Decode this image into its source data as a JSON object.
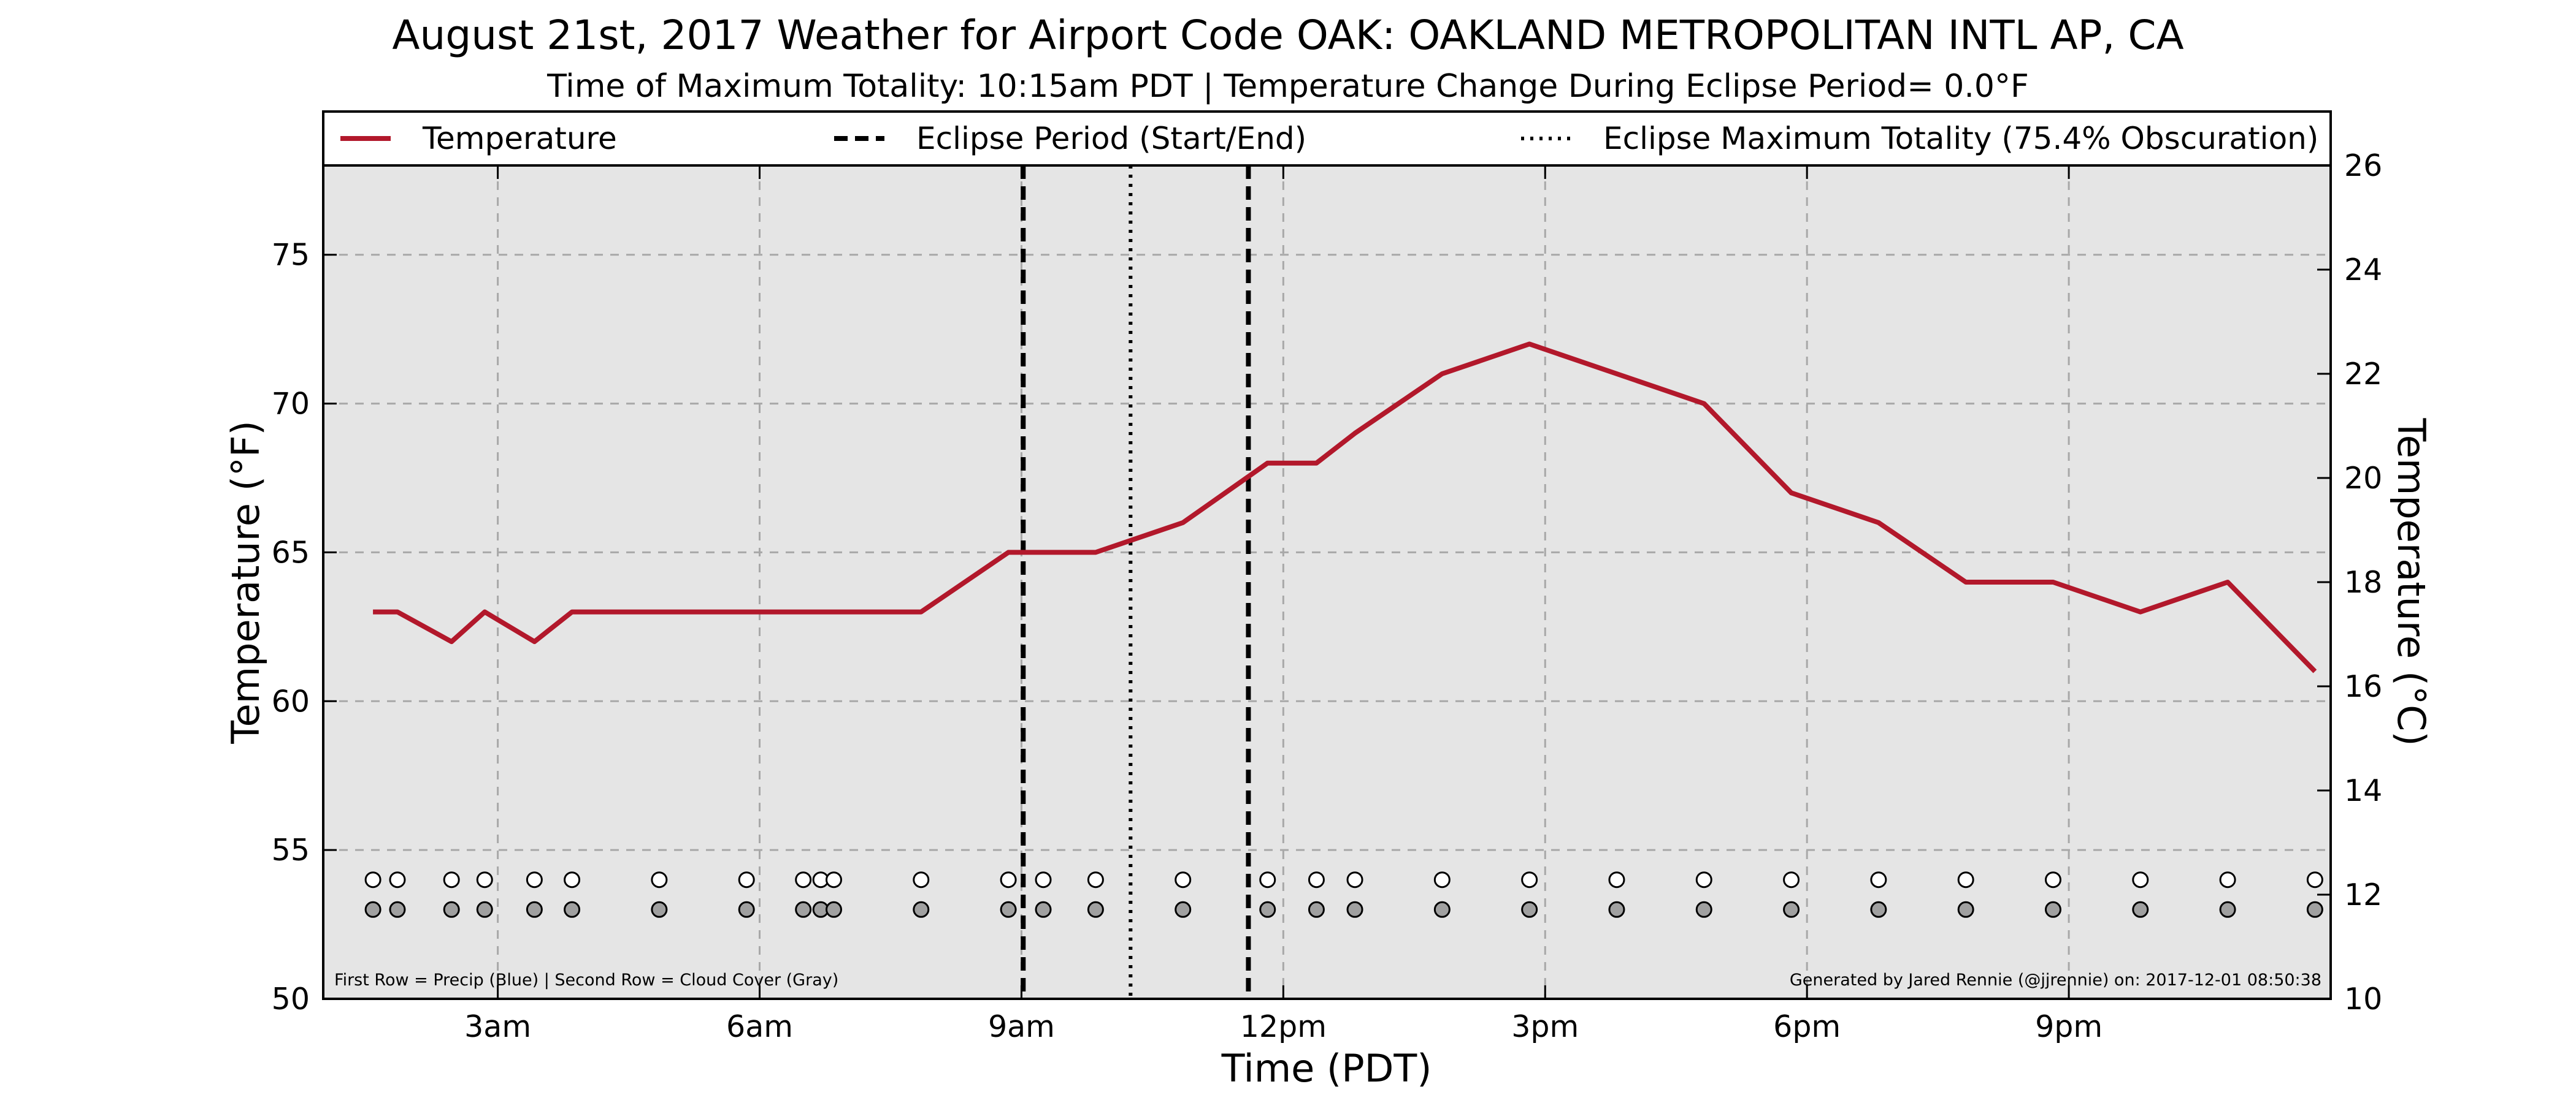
{
  "chart_data": {
    "type": "line",
    "title": "August 21st, 2017 Weather for Airport Code OAK: OAKLAND METROPOLITAN INTL AP, CA",
    "subtitle": "Time of Maximum Totality: 10:15am PDT | Temperature Change During Eclipse Period= 0.0°F",
    "xlabel": "Time (PDT)",
    "ylabel": "Temperature (°F)",
    "ylabel_right": "Temperature (°C)",
    "xlim": [
      1.0,
      24.0
    ],
    "ylim": [
      50,
      78
    ],
    "ylim_right": [
      10,
      26
    ],
    "x_ticks": [
      {
        "hour": 3,
        "label": "3am"
      },
      {
        "hour": 6,
        "label": "6am"
      },
      {
        "hour": 9,
        "label": "9am"
      },
      {
        "hour": 12,
        "label": "12pm"
      },
      {
        "hour": 15,
        "label": "3pm"
      },
      {
        "hour": 18,
        "label": "6pm"
      },
      {
        "hour": 21,
        "label": "9pm"
      }
    ],
    "y_ticks": [
      50,
      55,
      60,
      65,
      70,
      75
    ],
    "y_ticks_right": [
      10,
      12,
      14,
      16,
      18,
      20,
      22,
      24,
      26
    ],
    "grid": true,
    "legend_position": "top",
    "legend": [
      {
        "label": "Temperature",
        "style": "solid",
        "color": "#b2182b"
      },
      {
        "label": "Eclipse Period (Start/End)",
        "style": "dashed",
        "color": "#000000"
      },
      {
        "label": "Eclipse Maximum Totality (75.4% Obscuration)",
        "style": "dotted",
        "color": "#000000"
      }
    ],
    "series": [
      {
        "name": "Temperature",
        "color": "#b2182b",
        "x": [
          1.57,
          1.85,
          2.47,
          2.85,
          3.42,
          3.85,
          4.85,
          5.85,
          6.5,
          6.7,
          6.85,
          7.85,
          8.85,
          9.25,
          9.85,
          10.85,
          11.82,
          12.38,
          12.82,
          13.82,
          14.82,
          15.82,
          16.82,
          17.82,
          18.82,
          19.82,
          20.82,
          21.82,
          22.82,
          23.82
        ],
        "values": [
          63,
          63,
          62,
          63,
          62,
          63,
          63,
          63,
          63,
          63,
          63,
          63,
          65,
          65,
          65,
          66,
          68,
          68,
          69,
          71,
          72,
          71,
          70,
          67,
          66,
          64,
          64,
          63,
          64,
          61
        ]
      }
    ],
    "eclipse_start": 9.02,
    "eclipse_end": 11.6,
    "eclipse_max": 10.25,
    "precip_markers": [
      1.57,
      1.85,
      2.47,
      2.85,
      3.42,
      3.85,
      4.85,
      5.85,
      6.5,
      6.7,
      6.85,
      7.85,
      8.85,
      9.25,
      9.85,
      10.85,
      11.82,
      12.38,
      12.82,
      13.82,
      14.82,
      15.82,
      16.82,
      17.82,
      18.82,
      19.82,
      20.82,
      21.82,
      22.82,
      23.82
    ],
    "cloud_markers": [
      1.57,
      1.85,
      2.47,
      2.85,
      3.42,
      3.85,
      4.85,
      5.85,
      6.5,
      6.7,
      6.85,
      7.85,
      8.85,
      9.25,
      9.85,
      10.85,
      11.82,
      12.38,
      12.82,
      13.82,
      14.82,
      15.82,
      16.82,
      17.82,
      18.82,
      19.82,
      20.82,
      21.82,
      22.82,
      23.82
    ],
    "precip_row_y": 54,
    "cloud_row_y": 53,
    "precip_color": "#ffffff",
    "cloud_color": "#a0a0a0",
    "plot_background": "#e5e5e5",
    "annotation_left": "First Row = Precip (Blue) | Second Row = Cloud Cover (Gray)",
    "annotation_right": "Generated by Jared Rennie (@jjrennie) on: 2017-12-01 08:50:38"
  }
}
